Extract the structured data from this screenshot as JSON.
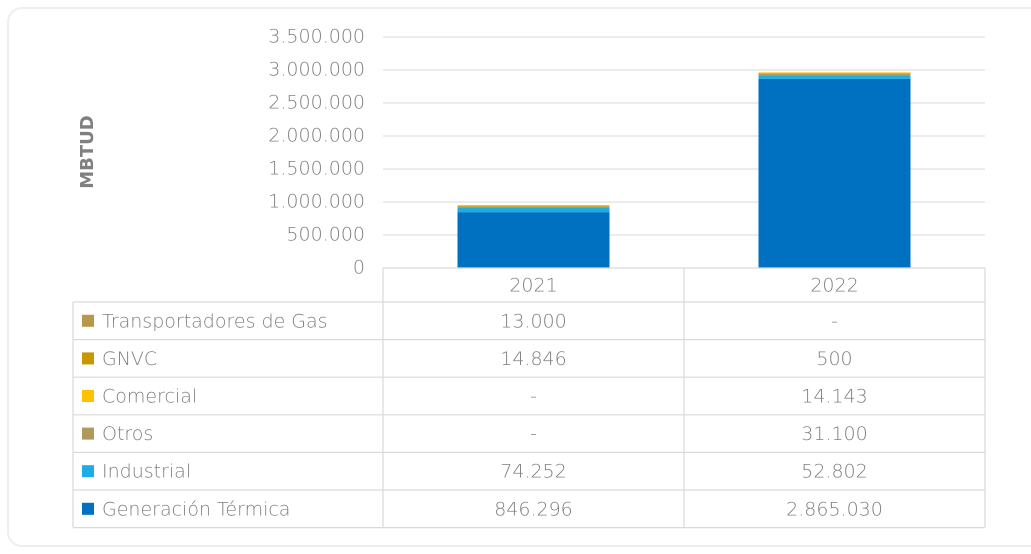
{
  "chart_data": {
    "type": "stacked_bar",
    "y_axis_label": "MBTUD",
    "categories": [
      "2021",
      "2022"
    ],
    "ylim": [
      0,
      3500000
    ],
    "yticks": [
      0,
      {
        "value": 500000,
        "label": "500.000"
      },
      {
        "value": 1000000,
        "label": "1.000.000"
      },
      {
        "value": 1500000,
        "label": "1.500.000"
      },
      {
        "value": 2000000,
        "label": "2.000.000"
      },
      {
        "value": 2500000,
        "label": "2.500.000"
      },
      {
        "value": 3000000,
        "label": "3.000.000"
      },
      {
        "value": 3500000,
        "label": "3.500.000"
      }
    ],
    "grid": true,
    "series": [
      {
        "name": "Generación Térmica",
        "color": "#0070c0",
        "values": [
          846296,
          2865030
        ],
        "value_labels": [
          "846.296",
          "2.865.030"
        ]
      },
      {
        "name": "Industrial",
        "color": "#1cade4",
        "values": [
          74252,
          52802
        ],
        "value_labels": [
          "74.252",
          "52.802"
        ]
      },
      {
        "name": "Otros",
        "color": "#b09a5b",
        "values": [
          null,
          31100
        ],
        "value_labels": [
          "-",
          "31.100"
        ]
      },
      {
        "name": "Comercial",
        "color": "#ffc000",
        "values": [
          null,
          14143
        ],
        "value_labels": [
          "-",
          "14.143"
        ]
      },
      {
        "name": "GNVC",
        "color": "#c89800",
        "values": [
          14846,
          500
        ],
        "value_labels": [
          "14.846",
          "500"
        ]
      },
      {
        "name": "Transportadores de Gas",
        "color": "#b8964a",
        "values": [
          13000,
          null
        ],
        "value_labels": [
          "13.000",
          "-"
        ]
      }
    ]
  }
}
